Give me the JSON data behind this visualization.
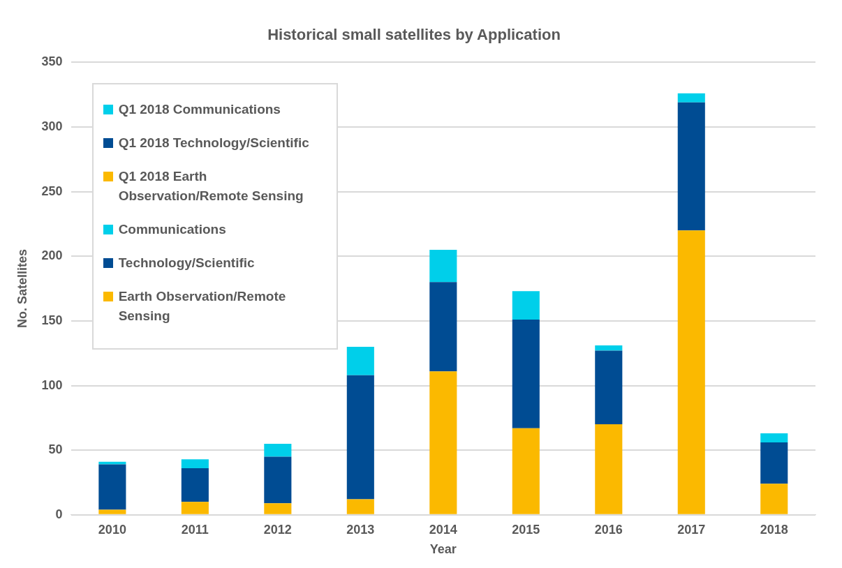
{
  "chart_data": {
    "type": "bar",
    "title": "Historical small satellites by Application",
    "xlabel": "Year",
    "ylabel": "No. Satellites",
    "categories": [
      "2010",
      "2011",
      "2012",
      "2013",
      "2014",
      "2015",
      "2016",
      "2017",
      "2018"
    ],
    "stacked": true,
    "series": [
      {
        "name": "Earth Observation/Remote Sensing",
        "color": "#fbb900",
        "values": [
          4,
          10,
          9,
          12,
          111,
          67,
          70,
          220,
          null
        ]
      },
      {
        "name": "Technology/Scientific",
        "color": "#004c93",
        "values": [
          35,
          26,
          36,
          96,
          69,
          84,
          57,
          99,
          null
        ]
      },
      {
        "name": "Communications",
        "color": "#00cfea",
        "values": [
          2,
          7,
          10,
          22,
          25,
          22,
          4,
          7,
          null
        ]
      },
      {
        "name": "Q1 2018 Earth Observation/Remote Sensing",
        "color": "#fbb900",
        "values": [
          null,
          null,
          null,
          null,
          null,
          null,
          null,
          null,
          24
        ]
      },
      {
        "name": "Q1 2018 Technology/Scientific",
        "color": "#004c93",
        "values": [
          null,
          null,
          null,
          null,
          null,
          null,
          null,
          null,
          32
        ]
      },
      {
        "name": "Q1 2018 Communications",
        "color": "#00cfea",
        "values": [
          null,
          null,
          null,
          null,
          null,
          null,
          null,
          null,
          7
        ]
      }
    ],
    "ylim": [
      0,
      350
    ],
    "yticks": [
      0,
      50,
      100,
      150,
      200,
      250,
      300,
      350
    ],
    "grid": "y",
    "legend": "top left"
  }
}
